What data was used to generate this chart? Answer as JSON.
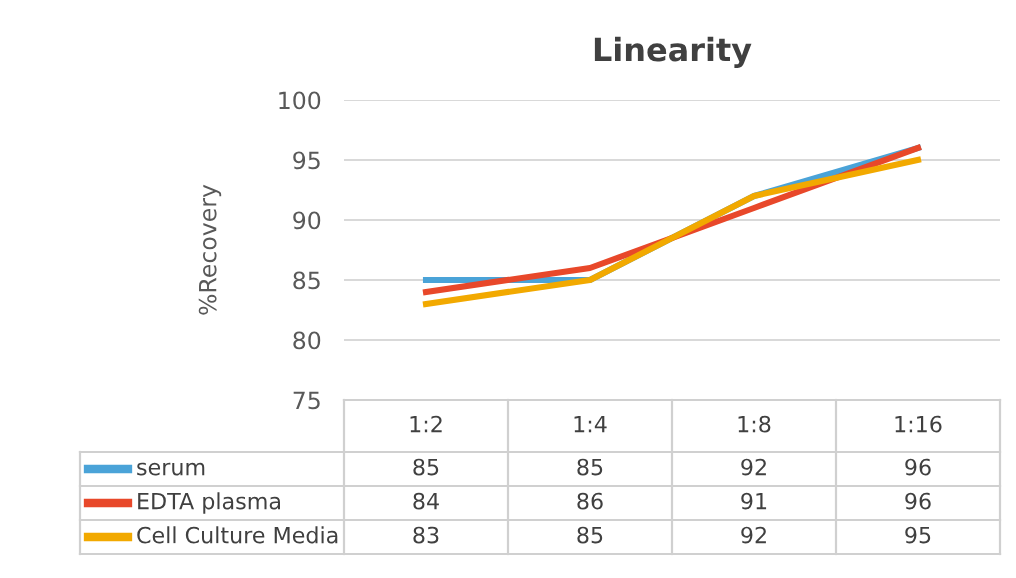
{
  "chart_data": {
    "type": "line",
    "title": "Linearity",
    "ylabel": "%Recovery",
    "categories": [
      "1:2",
      "1:4",
      "1:8",
      "1:16"
    ],
    "series": [
      {
        "name": "serum",
        "color": "#4aa3d8",
        "values": [
          85,
          85,
          92,
          96
        ]
      },
      {
        "name": "EDTA plasma",
        "color": "#e8482a",
        "values": [
          84,
          86,
          91,
          96
        ]
      },
      {
        "name": "Cell Culture Media",
        "color": "#f2a900",
        "values": [
          83,
          85,
          92,
          95
        ]
      }
    ],
    "ylim": [
      75,
      100
    ],
    "yticks": [
      75,
      80,
      85,
      90,
      95,
      100
    ],
    "grid": "y",
    "legend": "bottom",
    "data_labels": true,
    "marker": "none",
    "line_style": "solid"
  }
}
